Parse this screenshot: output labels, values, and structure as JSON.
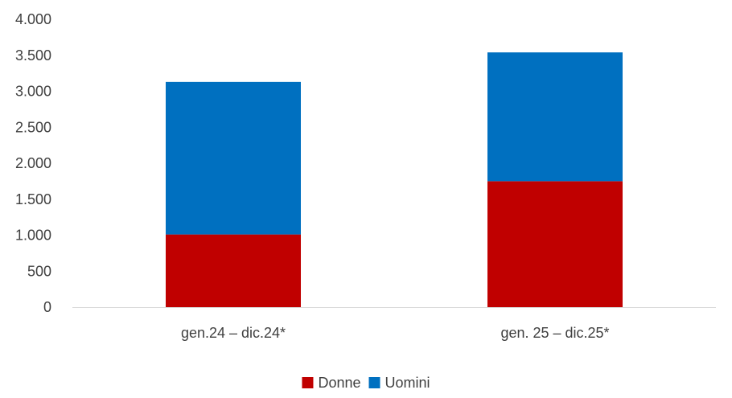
{
  "chart_data": {
    "type": "bar",
    "stacked": true,
    "categories": [
      "gen.24 – dic.24*",
      "gen. 25 – dic.25*"
    ],
    "series": [
      {
        "name": "Donne",
        "color": "#c00000",
        "values": [
          1010,
          1750
        ]
      },
      {
        "name": "Uomini",
        "color": "#0070c0",
        "values": [
          2120,
          1790
        ]
      }
    ],
    "ylim": [
      0,
      4000
    ],
    "y_ticks": [
      0,
      500,
      1000,
      1500,
      2000,
      2500,
      3000,
      3500,
      4000
    ],
    "y_tick_labels": [
      "0",
      "500",
      "1.000",
      "1.500",
      "2.000",
      "2.500",
      "3.000",
      "3.500",
      "4.000"
    ],
    "grid": false,
    "legend_position": "bottom"
  }
}
